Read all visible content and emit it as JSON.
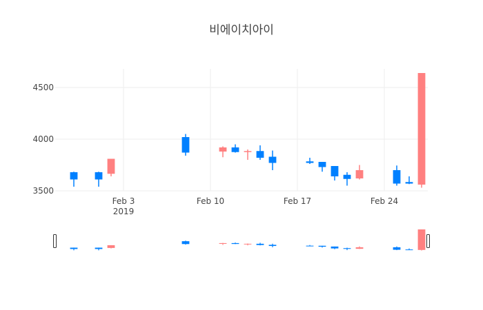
{
  "chart_data": {
    "type": "candlestick",
    "title": "비에이치아이",
    "xlabel": "",
    "ylabel": "",
    "ylim": [
      3500,
      4680
    ],
    "xlim": [
      "2019-01-29",
      "2019-02-27"
    ],
    "x_ticks": [
      {
        "date": "2019-02-03",
        "label": "Feb 3",
        "sublabel": "2019"
      },
      {
        "date": "2019-02-10",
        "label": "Feb 10",
        "sublabel": ""
      },
      {
        "date": "2019-02-17",
        "label": "Feb 17",
        "sublabel": ""
      },
      {
        "date": "2019-02-24",
        "label": "Feb 24",
        "sublabel": ""
      }
    ],
    "y_ticks": [
      {
        "value": 3500,
        "label": "3500"
      },
      {
        "value": 4000,
        "label": "4000"
      },
      {
        "value": 4500,
        "label": "4500"
      }
    ],
    "grid": true,
    "legend": "none",
    "rangeslider": true,
    "colors": {
      "increasing": "#FF8080",
      "decreasing": "#0080FF",
      "grid": "#eeeeee",
      "text": "#444444"
    },
    "candles": [
      {
        "date": "2019-01-30",
        "open": 3680,
        "high": 3685,
        "low": 3540,
        "close": 3610
      },
      {
        "date": "2019-02-01",
        "open": 3680,
        "high": 3685,
        "low": 3540,
        "close": 3610
      },
      {
        "date": "2019-02-02",
        "open": 3665,
        "high": 3810,
        "low": 3640,
        "close": 3810
      },
      {
        "date": "2019-02-08",
        "open": 4020,
        "high": 4050,
        "low": 3840,
        "close": 3870
      },
      {
        "date": "2019-02-11",
        "open": 3880,
        "high": 3930,
        "low": 3825,
        "close": 3920
      },
      {
        "date": "2019-02-12",
        "open": 3920,
        "high": 3950,
        "low": 3870,
        "close": 3875
      },
      {
        "date": "2019-02-13",
        "open": 3875,
        "high": 3900,
        "low": 3800,
        "close": 3885
      },
      {
        "date": "2019-02-14",
        "open": 3885,
        "high": 3940,
        "low": 3800,
        "close": 3820
      },
      {
        "date": "2019-02-15",
        "open": 3830,
        "high": 3890,
        "low": 3700,
        "close": 3770
      },
      {
        "date": "2019-02-18",
        "open": 3785,
        "high": 3820,
        "low": 3760,
        "close": 3770
      },
      {
        "date": "2019-02-19",
        "open": 3780,
        "high": 3780,
        "low": 3685,
        "close": 3730
      },
      {
        "date": "2019-02-20",
        "open": 3740,
        "high": 3740,
        "low": 3600,
        "close": 3640
      },
      {
        "date": "2019-02-21",
        "open": 3655,
        "high": 3680,
        "low": 3550,
        "close": 3615
      },
      {
        "date": "2019-02-22",
        "open": 3620,
        "high": 3750,
        "low": 3610,
        "close": 3700
      },
      {
        "date": "2019-02-25",
        "open": 3700,
        "high": 3745,
        "low": 3550,
        "close": 3570
      },
      {
        "date": "2019-02-26",
        "open": 3585,
        "high": 3640,
        "low": 3565,
        "close": 3570
      },
      {
        "date": "2019-02-27",
        "open": 3560,
        "high": 4640,
        "low": 3530,
        "close": 4640
      }
    ]
  }
}
